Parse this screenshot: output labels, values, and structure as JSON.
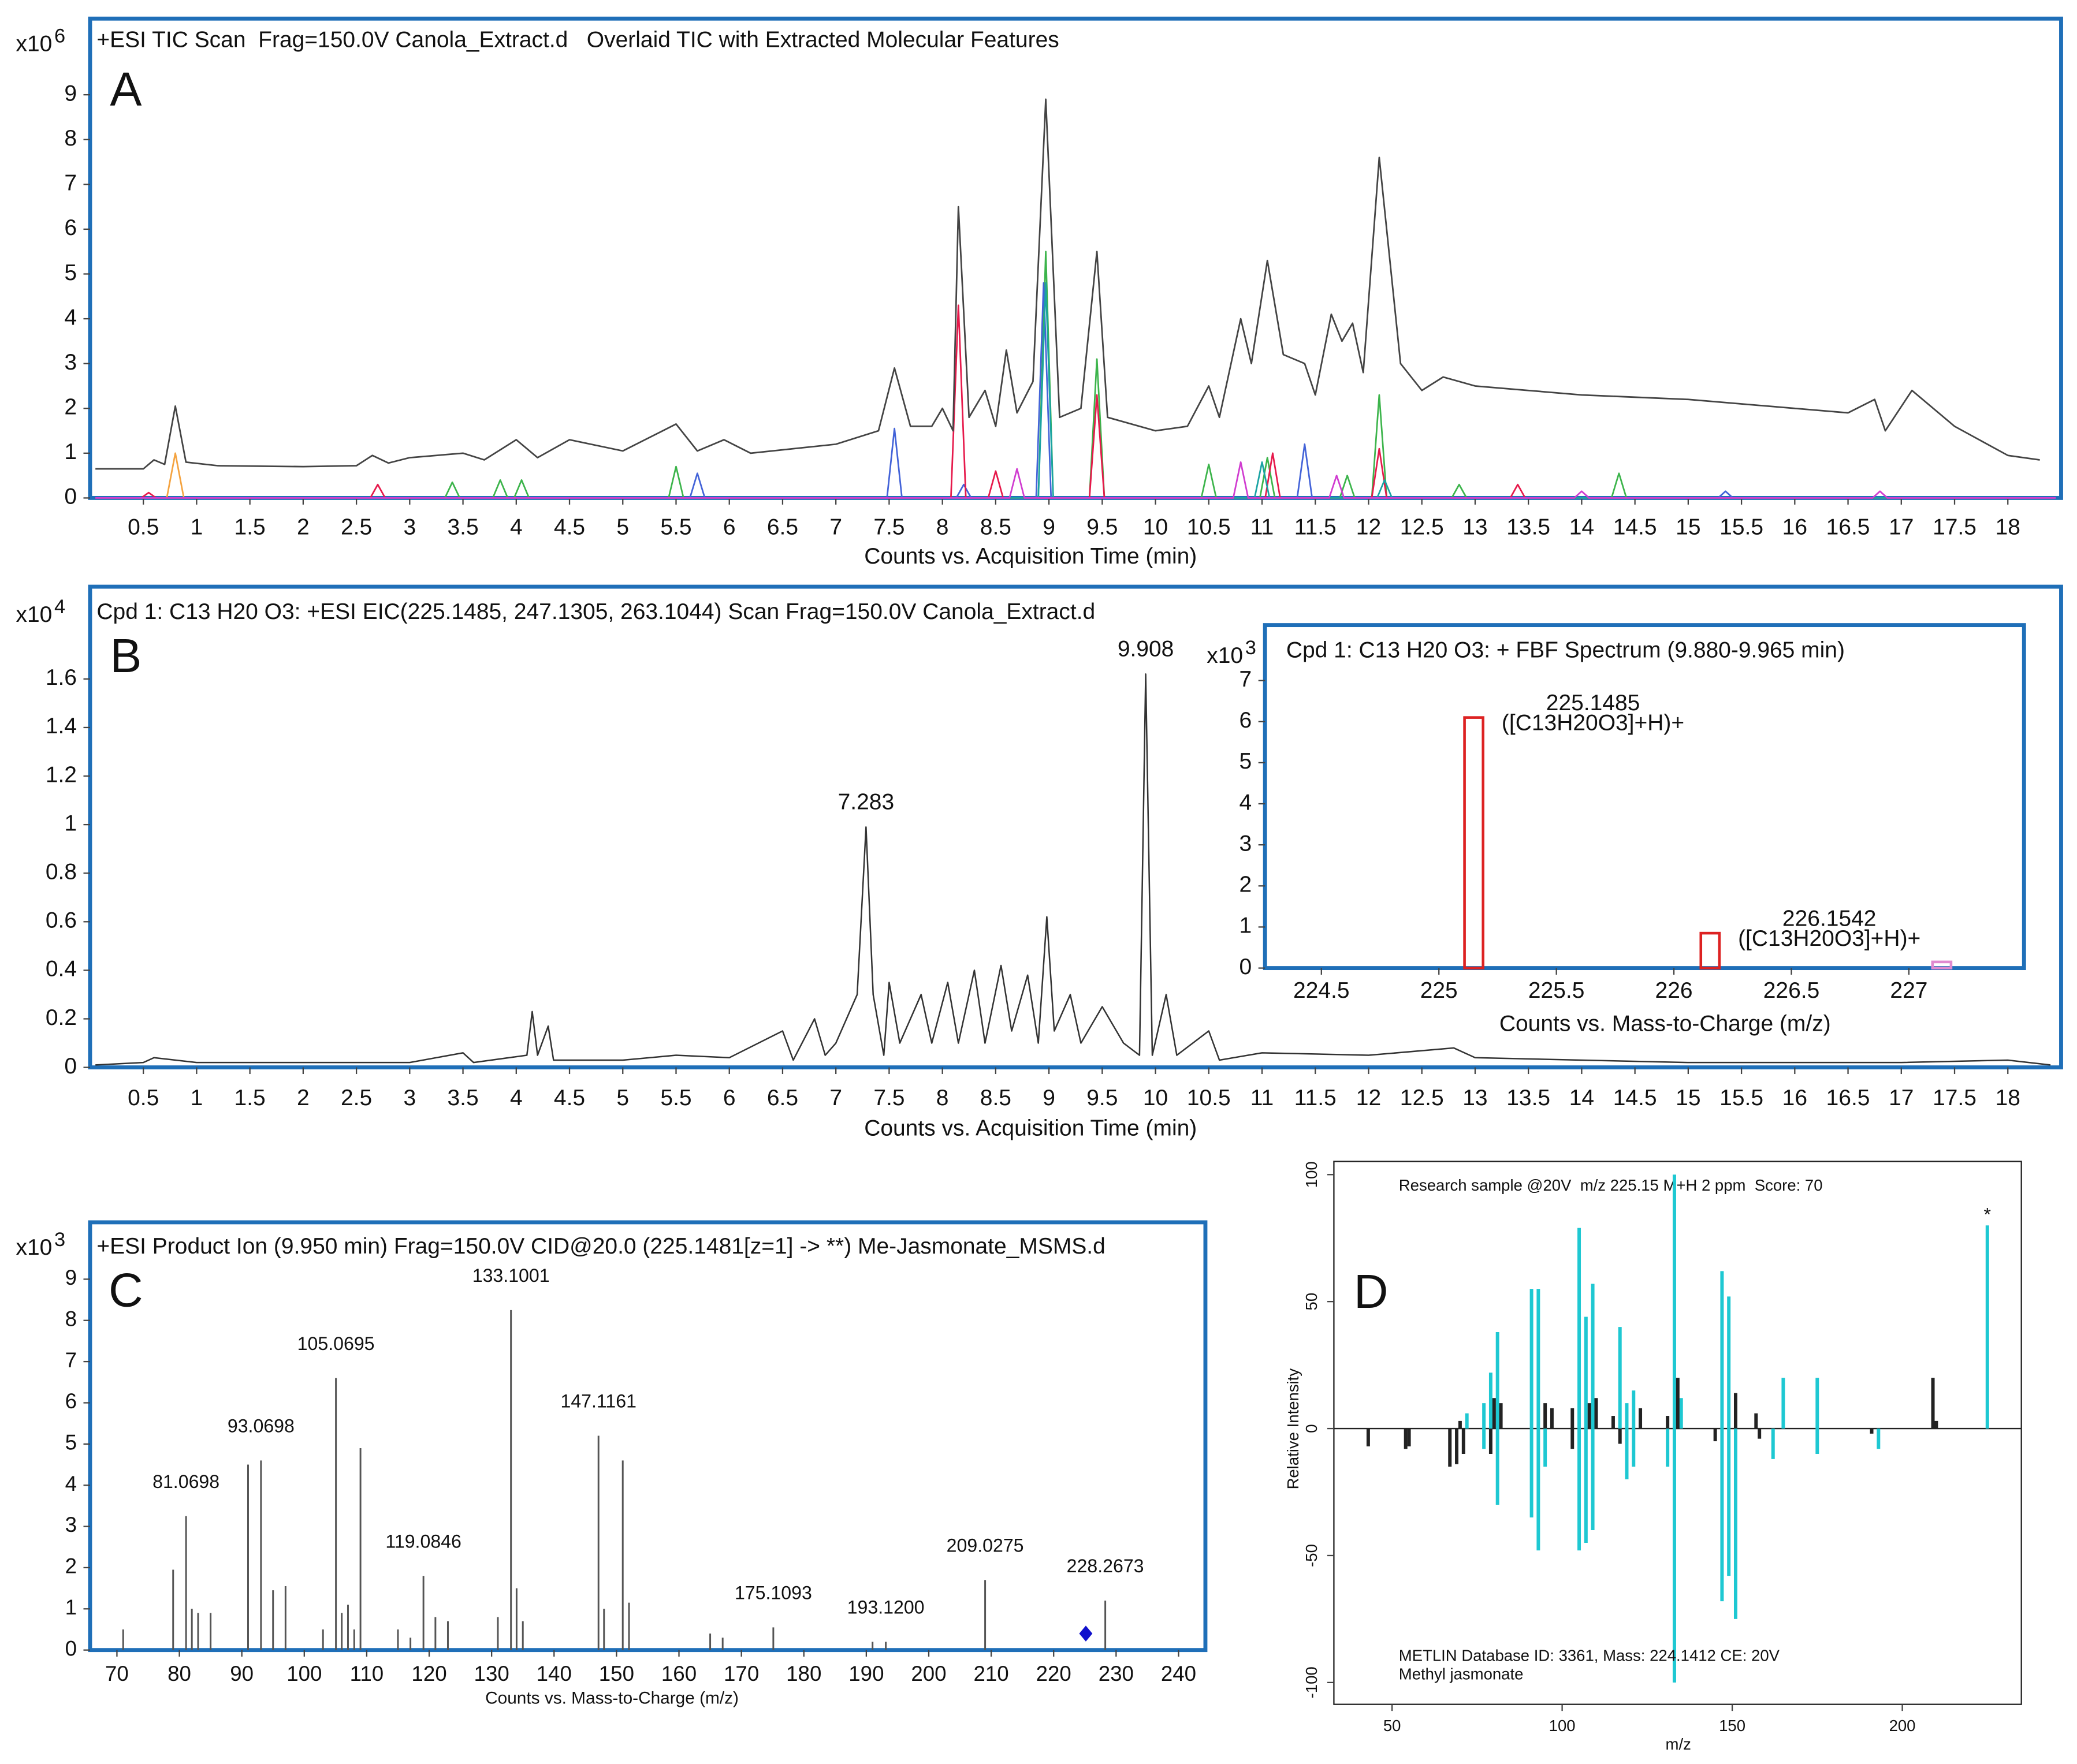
{
  "chart_data": [
    {
      "type": "line",
      "panel_label": "A",
      "title": "+ESI TIC Scan  Frag=150.0V Canola_Extract.d   Overlaid TIC with Extracted Molecular Features",
      "y_multiplier": "x10",
      "y_multiplier_exponent": "6",
      "x_label": "Counts vs. Acquisition Time (min)",
      "xlim": [
        0,
        18.5
      ],
      "ylim": [
        0,
        10.7
      ],
      "xticks": [
        0.5,
        1,
        1.5,
        2,
        2.5,
        3,
        3.5,
        4,
        4.5,
        5,
        5.5,
        6,
        6.5,
        7,
        7.5,
        8,
        8.5,
        9,
        9.5,
        10,
        10.5,
        11,
        11.5,
        12,
        12.5,
        13,
        13.5,
        14,
        14.5,
        15,
        15.5,
        16,
        16.5,
        17,
        17.5,
        18
      ],
      "yticks": [
        0,
        1,
        2,
        3,
        4,
        5,
        6,
        7,
        8,
        9
      ],
      "series": [
        {
          "color": "#f4a340",
          "x": [
            0.05,
            0.72,
            0.8,
            0.88,
            18.45
          ],
          "values": [
            0,
            0,
            1.0,
            0,
            0
          ]
        },
        {
          "color": "#3cb44b",
          "x": [
            0.05,
            3.33,
            3.4,
            3.47,
            3.78,
            3.85,
            3.92,
            3.98,
            4.05,
            4.12,
            5.43,
            5.5,
            5.57,
            8.9,
            8.97,
            9.04,
            9.38,
            9.45,
            9.52,
            10.43,
            10.5,
            10.57,
            10.98,
            11.05,
            11.12,
            11.73,
            11.8,
            11.87,
            12.03,
            12.1,
            12.17,
            12.78,
            12.85,
            12.92,
            14.28,
            14.35,
            14.42,
            18.45
          ],
          "values": [
            0,
            0,
            0.35,
            0,
            0,
            0.4,
            0,
            0,
            0.4,
            0,
            0,
            0.7,
            0,
            0,
            5.5,
            0,
            0,
            3.1,
            0,
            0,
            0.75,
            0,
            0,
            0.9,
            0,
            0,
            0.5,
            0,
            0,
            2.3,
            0,
            0,
            0.3,
            0,
            0,
            0.55,
            0,
            0
          ]
        },
        {
          "color": "#4363d8",
          "x": [
            0.05,
            5.63,
            5.7,
            5.77,
            7.48,
            7.55,
            7.62,
            8.13,
            8.2,
            8.27,
            8.88,
            8.95,
            9.02,
            11.33,
            11.4,
            11.47,
            15.28,
            15.35,
            15.42,
            18.45
          ],
          "values": [
            0,
            0,
            0.55,
            0,
            0,
            1.55,
            0,
            0,
            0.3,
            0,
            0,
            4.8,
            0,
            0,
            1.2,
            0,
            0,
            0.15,
            0,
            0
          ]
        },
        {
          "color": "#e6194b",
          "x": [
            0.05,
            0.48,
            0.55,
            0.62,
            2.63,
            2.7,
            2.77,
            8.08,
            8.15,
            8.22,
            8.43,
            8.5,
            8.57,
            9.38,
            9.45,
            9.52,
            11.03,
            11.1,
            11.17,
            12.03,
            12.1,
            12.17,
            13.33,
            13.4,
            13.47,
            18.45
          ],
          "values": [
            0,
            0,
            0.12,
            0,
            0,
            0.3,
            0,
            0,
            4.3,
            0,
            0,
            0.6,
            0,
            0,
            2.3,
            0,
            0,
            1.0,
            0,
            0,
            1.1,
            0,
            0,
            0.3,
            0,
            0
          ]
        },
        {
          "color": "#1aa3a3",
          "x": [
            0.05,
            8.9,
            8.97,
            9.04,
            10.93,
            11.0,
            11.07,
            12.08,
            12.15,
            12.22,
            18.45
          ],
          "values": [
            0,
            0,
            4.8,
            0,
            0,
            0.8,
            0,
            0,
            0.4,
            0,
            0
          ]
        },
        {
          "color": "#d03cd0",
          "x": [
            0.05,
            8.63,
            8.7,
            8.77,
            10.73,
            10.8,
            10.87,
            11.63,
            11.7,
            11.77,
            13.93,
            14.0,
            14.07,
            16.73,
            16.8,
            16.87,
            18.45
          ],
          "values": [
            0,
            0,
            0.65,
            0,
            0,
            0.8,
            0,
            0,
            0.5,
            0,
            0,
            0.15,
            0,
            0,
            0.15,
            0,
            0
          ]
        },
        {
          "color": "#444444",
          "x": [
            0.05,
            0.5,
            0.6,
            0.7,
            0.8,
            0.9,
            1.2,
            2,
            2.5,
            2.65,
            2.8,
            3,
            3.5,
            3.7,
            4,
            4.2,
            4.5,
            5,
            5.5,
            5.7,
            5.95,
            6.2,
            7,
            7.4,
            7.55,
            7.7,
            7.9,
            8,
            8.1,
            8.15,
            8.25,
            8.4,
            8.5,
            8.6,
            8.7,
            8.85,
            8.97,
            9.1,
            9.3,
            9.45,
            9.55,
            10,
            10.3,
            10.5,
            10.6,
            10.8,
            10.9,
            11.05,
            11.2,
            11.4,
            11.5,
            11.65,
            11.75,
            11.85,
            11.95,
            12.1,
            12.3,
            12.5,
            12.7,
            13,
            13.5,
            14,
            15,
            16,
            16.5,
            16.75,
            16.85,
            17.1,
            17.5,
            18,
            18.3
          ],
          "values": [
            0.65,
            0.65,
            0.85,
            0.75,
            2.05,
            0.8,
            0.72,
            0.7,
            0.72,
            0.95,
            0.78,
            0.9,
            1.0,
            0.85,
            1.3,
            0.9,
            1.3,
            1.05,
            1.65,
            1.05,
            1.3,
            1.0,
            1.2,
            1.5,
            2.9,
            1.6,
            1.6,
            2.0,
            1.5,
            6.5,
            1.8,
            2.4,
            1.6,
            3.3,
            1.9,
            2.6,
            8.9,
            1.8,
            2.0,
            5.5,
            1.8,
            1.5,
            1.6,
            2.5,
            1.8,
            4.0,
            3.0,
            5.3,
            3.2,
            3.0,
            2.3,
            4.1,
            3.5,
            3.9,
            2.8,
            7.6,
            3.0,
            2.4,
            2.7,
            2.5,
            2.4,
            2.3,
            2.2,
            2.0,
            1.9,
            2.2,
            1.5,
            2.4,
            1.6,
            0.95,
            0.85
          ]
        }
      ]
    },
    {
      "type": "line",
      "panel_label": "B",
      "title": "Cpd 1: C13 H20 O3: +ESI EIC(225.1485, 247.1305, 263.1044) Scan Frag=150.0V Canola_Extract.d",
      "y_multiplier": "x10",
      "y_multiplier_exponent": "4",
      "x_label": "Counts vs. Acquisition Time (min)",
      "xlim": [
        0,
        18.5
      ],
      "ylim": [
        0,
        1.98
      ],
      "xticks": [
        0.5,
        1,
        1.5,
        2,
        2.5,
        3,
        3.5,
        4,
        4.5,
        5,
        5.5,
        6,
        6.5,
        7,
        7.5,
        8,
        8.5,
        9,
        9.5,
        10,
        10.5,
        11,
        11.5,
        12,
        12.5,
        13,
        13.5,
        14,
        14.5,
        15,
        15.5,
        16,
        16.5,
        17,
        17.5,
        18
      ],
      "yticks": [
        0,
        0.2,
        0.4,
        0.6,
        0.8,
        1,
        1.2,
        1.4,
        1.6
      ],
      "annotations": [
        {
          "text": "9.908",
          "x": 9.908,
          "y": 1.62
        },
        {
          "text": "7.283",
          "x": 7.283,
          "y": 0.99
        }
      ],
      "series": [
        {
          "color": "#333333",
          "x": [
            0.05,
            0.5,
            0.6,
            1,
            2,
            3,
            3.5,
            3.6,
            4.1,
            4.15,
            4.2,
            4.3,
            4.35,
            5,
            5.5,
            6,
            6.5,
            6.6,
            6.8,
            6.9,
            7,
            7.2,
            7.283,
            7.35,
            7.45,
            7.5,
            7.6,
            7.8,
            7.9,
            8.05,
            8.15,
            8.3,
            8.4,
            8.55,
            8.65,
            8.8,
            8.9,
            8.98,
            9.05,
            9.2,
            9.3,
            9.5,
            9.7,
            9.85,
            9.908,
            9.97,
            10.1,
            10.2,
            10.5,
            10.6,
            11,
            12,
            12.8,
            13,
            14,
            15,
            16,
            17,
            18,
            18.4
          ],
          "values": [
            0.01,
            0.02,
            0.04,
            0.02,
            0.02,
            0.02,
            0.06,
            0.02,
            0.05,
            0.23,
            0.05,
            0.17,
            0.03,
            0.03,
            0.05,
            0.04,
            0.15,
            0.03,
            0.2,
            0.05,
            0.1,
            0.3,
            0.99,
            0.3,
            0.05,
            0.35,
            0.1,
            0.3,
            0.1,
            0.35,
            0.1,
            0.4,
            0.1,
            0.42,
            0.15,
            0.38,
            0.1,
            0.62,
            0.15,
            0.3,
            0.1,
            0.25,
            0.1,
            0.05,
            1.62,
            0.05,
            0.3,
            0.05,
            0.15,
            0.03,
            0.06,
            0.05,
            0.08,
            0.04,
            0.03,
            0.02,
            0.02,
            0.02,
            0.03,
            0.01
          ]
        }
      ]
    },
    {
      "type": "bar",
      "title": "Cpd 1: C13 H20 O3: + FBF Spectrum (9.880-9.965 min)",
      "y_multiplier": "x10",
      "y_multiplier_exponent": "3",
      "x_label": "Counts vs. Mass-to-Charge (m/z)",
      "xlim": [
        224.26,
        227.49
      ],
      "ylim": [
        0,
        8.35
      ],
      "xticks": [
        224.5,
        225,
        225.5,
        226,
        226.5,
        227
      ],
      "yticks": [
        0,
        1,
        2,
        3,
        4,
        5,
        6,
        7
      ],
      "series": [
        {
          "x": [
            225.1485,
            226.1542,
            227.14
          ],
          "values": [
            6.1,
            0.85,
            0.15
          ],
          "colors": [
            "#dd2222",
            "#dd2222",
            "#e08ad0"
          ],
          "labels": [
            "225.1485",
            "226.1542",
            null
          ],
          "sublabels": [
            "([C13H20O3]+H)+",
            "([C13H20O3]+H)+",
            null
          ]
        }
      ]
    },
    {
      "type": "bar",
      "panel_label": "C",
      "title": "+ESI Product Ion (9.950 min) Frag=150.0V CID@20.0 (225.1481[z=1] -> **) Me-Jasmonate_MSMS.d",
      "y_multiplier": "x10",
      "y_multiplier_exponent": "3",
      "x_label": "Counts vs. Mass-to-Charge (m/z)",
      "xlim": [
        65.7,
        244.3
      ],
      "ylim": [
        0,
        10.38
      ],
      "xticks": [
        70,
        80,
        90,
        100,
        110,
        120,
        130,
        140,
        150,
        160,
        170,
        180,
        190,
        200,
        210,
        220,
        230,
        240
      ],
      "yticks": [
        0,
        1,
        2,
        3,
        4,
        5,
        6,
        7,
        8,
        9
      ],
      "precursor": {
        "x": 225.15,
        "y": 0.4,
        "color": "#1010cc"
      },
      "series": [
        {
          "color": "#555555",
          "x": [
            71,
            79,
            81.0698,
            82,
            83,
            85,
            91,
            93.0698,
            95,
            97,
            103,
            105.0695,
            106,
            107,
            108,
            109,
            115,
            117,
            119.0846,
            121,
            123,
            131,
            133.1001,
            134,
            135,
            147.1161,
            148,
            151,
            152,
            165,
            167,
            175.1093,
            191,
            193.12,
            209.0275,
            228.2673
          ],
          "values": [
            0.5,
            1.95,
            3.25,
            1.0,
            0.9,
            0.9,
            4.5,
            4.6,
            1.45,
            1.55,
            0.5,
            6.6,
            0.9,
            1.1,
            0.5,
            4.9,
            0.5,
            0.3,
            1.8,
            0.8,
            0.7,
            0.8,
            8.25,
            1.5,
            0.7,
            5.2,
            1.0,
            4.6,
            1.15,
            0.4,
            0.3,
            0.55,
            0.2,
            0.2,
            1.7,
            1.2
          ],
          "labels": [
            null,
            null,
            "81.0698",
            null,
            null,
            null,
            null,
            "93.0698",
            null,
            null,
            null,
            "105.0695",
            null,
            null,
            null,
            null,
            null,
            null,
            "119.0846",
            null,
            null,
            null,
            "133.1001",
            null,
            null,
            "147.1161",
            null,
            null,
            null,
            null,
            null,
            "175.1093",
            null,
            "193.1200",
            "209.0275",
            "228.2673"
          ]
        }
      ]
    },
    {
      "type": "bar",
      "panel_label": "D",
      "title": "Research sample @20V  m/z 225.15 M+H 2 ppm  Score: 70",
      "footer": [
        "METLIN Database ID: 3361, Mass: 224.1412 CE: 20V",
        "Methyl jasmonate"
      ],
      "x_label": "m/z",
      "y_label": "Relative Intensity",
      "xlim": [
        32.9,
        235
      ],
      "ylim": [
        -108.6,
        105.2
      ],
      "xticks": [
        50,
        100,
        150,
        200
      ],
      "yticks": [
        -100,
        -50,
        0,
        50,
        100
      ],
      "annotations": [
        {
          "text": "*",
          "x": 225,
          "y": 80
        }
      ],
      "series": [
        {
          "color": "#1ec8d2",
          "x": [
            72,
            77,
            79,
            81,
            91,
            93,
            105,
            107,
            109,
            117,
            119,
            121,
            133,
            135,
            147,
            149,
            165,
            175,
            225
          ],
          "values": [
            6,
            10,
            22,
            38,
            55,
            55,
            79,
            44,
            57,
            40,
            10,
            15,
            100,
            12,
            62,
            52,
            20,
            20,
            80
          ]
        },
        {
          "color": "#222222",
          "x": [
            70,
            80,
            82,
            95,
            97,
            103,
            108,
            110,
            115,
            123,
            131,
            134,
            151,
            157,
            209,
            210
          ],
          "values": [
            3,
            12,
            10,
            10,
            8,
            8,
            10,
            12,
            5,
            8,
            5,
            20,
            14,
            6,
            20,
            3
          ]
        },
        {
          "color": "#1ec8d2",
          "x": [
            77,
            81,
            91,
            93,
            95,
            105,
            107,
            109,
            119,
            121,
            131,
            133,
            147,
            149,
            151,
            162,
            175,
            193
          ],
          "values": [
            -8,
            -30,
            -35,
            -48,
            -15,
            -48,
            -45,
            -40,
            -20,
            -15,
            -15,
            -100,
            -68,
            -58,
            -75,
            -12,
            -10,
            -8
          ]
        },
        {
          "color": "#222222",
          "x": [
            43,
            54,
            55,
            67,
            69,
            71,
            79,
            103,
            117,
            145,
            158,
            191
          ],
          "values": [
            -7,
            -8,
            -7,
            -15,
            -14,
            -10,
            -10,
            -8,
            -6,
            -5,
            -4,
            -2
          ]
        }
      ]
    }
  ]
}
